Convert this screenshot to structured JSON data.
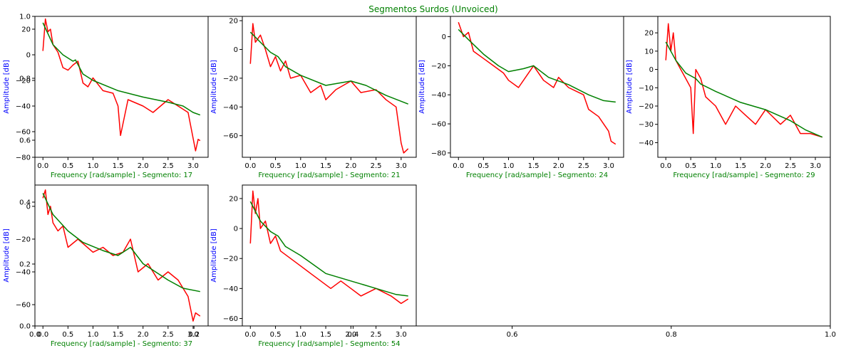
{
  "figure": {
    "title": "Segmentos Surdos (Unvoiced)",
    "colors": {
      "title": "#008000",
      "xlabel": "#008000",
      "ylabel": "#0000ff",
      "spectrum": "#ff0000",
      "envelope": "#008000"
    },
    "background_axes": {
      "xticks": [
        "0.0",
        "0.2",
        "0.4",
        "0.6",
        "0.8",
        "1.0"
      ],
      "yticks": [
        "0.0",
        "0.2",
        "0.4",
        "0.6",
        "0.8",
        "1.0"
      ]
    }
  },
  "chart_data": [
    {
      "type": "line",
      "segment": 17,
      "xlabel": "Frequency [rad/sample] - Segmento: 17",
      "ylabel": "Amplitude [dB]",
      "xlim": [
        -0.16,
        3.3
      ],
      "ylim": [
        -80,
        30
      ],
      "xticks": [
        0.0,
        0.5,
        1.0,
        1.5,
        2.0,
        2.5,
        3.0
      ],
      "yticks": [
        20,
        0,
        -20,
        -40,
        -60,
        -80
      ],
      "spectrum": [
        [
          0.0,
          3
        ],
        [
          0.05,
          28
        ],
        [
          0.1,
          18
        ],
        [
          0.15,
          20
        ],
        [
          0.2,
          8
        ],
        [
          0.3,
          2
        ],
        [
          0.4,
          -10
        ],
        [
          0.5,
          -12
        ],
        [
          0.6,
          -8
        ],
        [
          0.7,
          -5
        ],
        [
          0.8,
          -22
        ],
        [
          0.9,
          -25
        ],
        [
          1.0,
          -18
        ],
        [
          1.2,
          -28
        ],
        [
          1.4,
          -30
        ],
        [
          1.5,
          -40
        ],
        [
          1.55,
          -63
        ],
        [
          1.7,
          -35
        ],
        [
          2.0,
          -40
        ],
        [
          2.2,
          -45
        ],
        [
          2.5,
          -35
        ],
        [
          2.7,
          -40
        ],
        [
          2.9,
          -45
        ],
        [
          3.0,
          -65
        ],
        [
          3.05,
          -75
        ],
        [
          3.1,
          -66
        ],
        [
          3.14,
          -67
        ]
      ],
      "envelope": [
        [
          0.0,
          25
        ],
        [
          0.2,
          8
        ],
        [
          0.4,
          0
        ],
        [
          0.6,
          -5
        ],
        [
          0.65,
          -4
        ],
        [
          0.8,
          -15
        ],
        [
          1.0,
          -20
        ],
        [
          1.5,
          -28
        ],
        [
          2.0,
          -33
        ],
        [
          2.5,
          -37
        ],
        [
          2.8,
          -40
        ],
        [
          3.0,
          -45
        ],
        [
          3.14,
          -47
        ]
      ]
    },
    {
      "type": "line",
      "segment": 21,
      "xlabel": "Frequency [rad/sample] - Segmento: 21",
      "ylabel": "Amplitude [dB]",
      "xlim": [
        -0.16,
        3.3
      ],
      "ylim": [
        -75,
        23
      ],
      "xticks": [
        0.0,
        0.5,
        1.0,
        1.5,
        2.0,
        2.5,
        3.0
      ],
      "yticks": [
        20,
        0,
        -20,
        -40,
        -60
      ],
      "spectrum": [
        [
          0.0,
          -10
        ],
        [
          0.05,
          18
        ],
        [
          0.1,
          5
        ],
        [
          0.2,
          10
        ],
        [
          0.3,
          0
        ],
        [
          0.4,
          -12
        ],
        [
          0.5,
          -5
        ],
        [
          0.6,
          -15
        ],
        [
          0.7,
          -8
        ],
        [
          0.8,
          -20
        ],
        [
          1.0,
          -18
        ],
        [
          1.2,
          -30
        ],
        [
          1.4,
          -25
        ],
        [
          1.5,
          -35
        ],
        [
          1.7,
          -28
        ],
        [
          2.0,
          -22
        ],
        [
          2.2,
          -30
        ],
        [
          2.5,
          -28
        ],
        [
          2.7,
          -35
        ],
        [
          2.9,
          -40
        ],
        [
          3.0,
          -65
        ],
        [
          3.05,
          -72
        ],
        [
          3.14,
          -69
        ]
      ],
      "envelope": [
        [
          0.0,
          12
        ],
        [
          0.2,
          5
        ],
        [
          0.4,
          -2
        ],
        [
          0.55,
          -5
        ],
        [
          0.7,
          -12
        ],
        [
          1.0,
          -18
        ],
        [
          1.5,
          -25
        ],
        [
          2.0,
          -22
        ],
        [
          2.3,
          -25
        ],
        [
          2.7,
          -32
        ],
        [
          3.14,
          -38
        ]
      ]
    },
    {
      "type": "line",
      "segment": 24,
      "xlabel": "Frequency [rad/sample] - Segmento: 24",
      "ylabel": "Amplitude [dB]",
      "xlim": [
        -0.16,
        3.3
      ],
      "ylim": [
        -83,
        14
      ],
      "xticks": [
        0.0,
        0.5,
        1.0,
        1.5,
        2.0,
        2.5,
        3.0
      ],
      "yticks": [
        0,
        -20,
        -40,
        -60,
        -80
      ],
      "spectrum": [
        [
          0.0,
          10
        ],
        [
          0.1,
          0
        ],
        [
          0.2,
          3
        ],
        [
          0.3,
          -10
        ],
        [
          0.5,
          -15
        ],
        [
          0.7,
          -20
        ],
        [
          0.9,
          -25
        ],
        [
          1.0,
          -30
        ],
        [
          1.2,
          -35
        ],
        [
          1.4,
          -25
        ],
        [
          1.5,
          -20
        ],
        [
          1.7,
          -30
        ],
        [
          1.9,
          -35
        ],
        [
          2.0,
          -28
        ],
        [
          2.2,
          -35
        ],
        [
          2.5,
          -40
        ],
        [
          2.6,
          -50
        ],
        [
          2.8,
          -55
        ],
        [
          3.0,
          -65
        ],
        [
          3.05,
          -72
        ],
        [
          3.14,
          -74
        ]
      ],
      "envelope": [
        [
          0.0,
          5
        ],
        [
          0.2,
          -2
        ],
        [
          0.5,
          -12
        ],
        [
          0.8,
          -20
        ],
        [
          1.0,
          -24
        ],
        [
          1.3,
          -22
        ],
        [
          1.5,
          -20
        ],
        [
          1.8,
          -28
        ],
        [
          2.2,
          -33
        ],
        [
          2.6,
          -40
        ],
        [
          2.9,
          -44
        ],
        [
          3.14,
          -45
        ]
      ]
    },
    {
      "type": "line",
      "segment": 29,
      "xlabel": "Frequency [rad/sample] - Segmento: 29",
      "ylabel": "Amplitude [dB]",
      "xlim": [
        -0.16,
        3.3
      ],
      "ylim": [
        -48,
        29
      ],
      "xticks": [
        0.0,
        0.5,
        1.0,
        1.5,
        2.0,
        2.5,
        3.0
      ],
      "yticks": [
        20,
        10,
        0,
        -10,
        -20,
        -30,
        -40
      ],
      "spectrum": [
        [
          0.0,
          5
        ],
        [
          0.05,
          25
        ],
        [
          0.1,
          10
        ],
        [
          0.15,
          20
        ],
        [
          0.2,
          5
        ],
        [
          0.3,
          0
        ],
        [
          0.4,
          -5
        ],
        [
          0.5,
          -10
        ],
        [
          0.55,
          -35
        ],
        [
          0.6,
          0
        ],
        [
          0.7,
          -5
        ],
        [
          0.8,
          -15
        ],
        [
          1.0,
          -20
        ],
        [
          1.2,
          -30
        ],
        [
          1.4,
          -20
        ],
        [
          1.6,
          -25
        ],
        [
          1.8,
          -30
        ],
        [
          2.0,
          -22
        ],
        [
          2.3,
          -30
        ],
        [
          2.5,
          -25
        ],
        [
          2.7,
          -35
        ],
        [
          2.9,
          -35
        ],
        [
          3.14,
          -37
        ]
      ],
      "envelope": [
        [
          0.0,
          15
        ],
        [
          0.2,
          5
        ],
        [
          0.4,
          -2
        ],
        [
          0.6,
          -5
        ],
        [
          0.7,
          -8
        ],
        [
          1.0,
          -12
        ],
        [
          1.5,
          -18
        ],
        [
          2.0,
          -22
        ],
        [
          2.5,
          -28
        ],
        [
          2.8,
          -33
        ],
        [
          3.14,
          -37
        ]
      ]
    },
    {
      "type": "line",
      "segment": 37,
      "xlabel": "Frequency [rad/sample] - Segmento: 37",
      "ylabel": "Amplitude [dB]",
      "xlim": [
        -0.16,
        3.3
      ],
      "ylim": [
        -73,
        13
      ],
      "xticks": [
        0.0,
        0.5,
        1.0,
        1.5,
        2.0,
        2.5,
        3.0
      ],
      "yticks": [
        0,
        -20,
        -40,
        -60
      ],
      "spectrum": [
        [
          0.0,
          5
        ],
        [
          0.05,
          10
        ],
        [
          0.1,
          -5
        ],
        [
          0.15,
          0
        ],
        [
          0.2,
          -10
        ],
        [
          0.3,
          -15
        ],
        [
          0.4,
          -12
        ],
        [
          0.5,
          -25
        ],
        [
          0.7,
          -20
        ],
        [
          1.0,
          -28
        ],
        [
          1.2,
          -25
        ],
        [
          1.4,
          -30
        ],
        [
          1.6,
          -28
        ],
        [
          1.75,
          -20
        ],
        [
          1.9,
          -40
        ],
        [
          2.1,
          -35
        ],
        [
          2.3,
          -45
        ],
        [
          2.5,
          -40
        ],
        [
          2.7,
          -45
        ],
        [
          2.9,
          -55
        ],
        [
          3.0,
          -70
        ],
        [
          3.05,
          -65
        ],
        [
          3.14,
          -67
        ]
      ],
      "envelope": [
        [
          0.0,
          8
        ],
        [
          0.2,
          -5
        ],
        [
          0.5,
          -15
        ],
        [
          0.8,
          -22
        ],
        [
          1.2,
          -27
        ],
        [
          1.5,
          -30
        ],
        [
          1.75,
          -25
        ],
        [
          2.0,
          -35
        ],
        [
          2.5,
          -45
        ],
        [
          2.8,
          -50
        ],
        [
          3.14,
          -52
        ]
      ]
    },
    {
      "type": "line",
      "segment": 54,
      "xlabel": "Frequency [rad/sample] - Segmento: 54",
      "ylabel": "Amplitude [dB]",
      "xlim": [
        -0.16,
        3.3
      ],
      "ylim": [
        -65,
        29
      ],
      "xticks": [
        0.0,
        0.5,
        1.0,
        1.5,
        2.0,
        2.5,
        3.0
      ],
      "yticks": [
        20,
        0,
        -20,
        -40,
        -60
      ],
      "spectrum": [
        [
          0.0,
          -10
        ],
        [
          0.05,
          25
        ],
        [
          0.1,
          10
        ],
        [
          0.15,
          20
        ],
        [
          0.2,
          0
        ],
        [
          0.3,
          5
        ],
        [
          0.4,
          -10
        ],
        [
          0.5,
          -5
        ],
        [
          0.6,
          -15
        ],
        [
          0.8,
          -20
        ],
        [
          1.0,
          -25
        ],
        [
          1.2,
          -30
        ],
        [
          1.4,
          -35
        ],
        [
          1.6,
          -40
        ],
        [
          1.8,
          -35
        ],
        [
          2.0,
          -40
        ],
        [
          2.2,
          -45
        ],
        [
          2.5,
          -40
        ],
        [
          2.8,
          -45
        ],
        [
          3.0,
          -50
        ],
        [
          3.14,
          -47
        ]
      ],
      "envelope": [
        [
          0.0,
          18
        ],
        [
          0.2,
          5
        ],
        [
          0.4,
          -2
        ],
        [
          0.55,
          -5
        ],
        [
          0.7,
          -12
        ],
        [
          1.0,
          -18
        ],
        [
          1.5,
          -30
        ],
        [
          2.0,
          -35
        ],
        [
          2.5,
          -40
        ],
        [
          2.9,
          -44
        ],
        [
          3.14,
          -45
        ]
      ]
    }
  ]
}
